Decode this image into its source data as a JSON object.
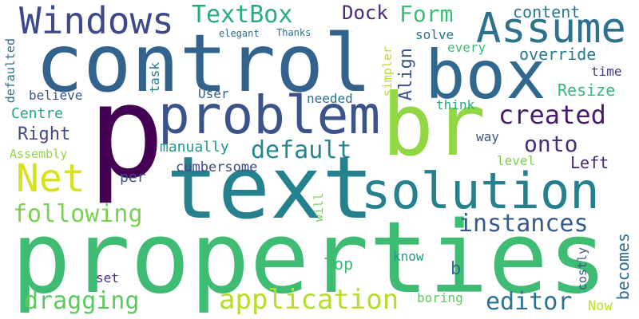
{
  "word_cloud": {
    "background": "#ffffff",
    "palette": {
      "deep_purple": "#440154",
      "indigo": "#3b528b",
      "slate": "#31688e",
      "teal": "#21918c",
      "green": "#35b779",
      "lime": "#90d743",
      "yellow": "#bddf26"
    },
    "words": [
      {
        "text": "properties",
        "color": "#3fbc73"
      },
      {
        "text": "text",
        "color": "#26818e"
      },
      {
        "text": "control",
        "color": "#33638d"
      },
      {
        "text": "p",
        "color": "#440154"
      },
      {
        "text": "br",
        "color": "#90d743"
      },
      {
        "text": "box",
        "color": "#31688e"
      },
      {
        "text": "problem",
        "color": "#3b528b"
      },
      {
        "text": "solution",
        "color": "#26818e"
      },
      {
        "text": "Windows",
        "color": "#3e4989"
      },
      {
        "text": "Assume",
        "color": "#2c728e"
      },
      {
        "text": "Net",
        "color": "#d8e219"
      },
      {
        "text": "application",
        "color": "#b5de2b"
      },
      {
        "text": "instances",
        "color": "#38598c"
      },
      {
        "text": "TextBox",
        "color": "#25ac82"
      },
      {
        "text": "Form",
        "color": "#3dbc74"
      },
      {
        "text": "created",
        "color": "#481b6d"
      },
      {
        "text": "default",
        "color": "#24868e"
      },
      {
        "text": "onto",
        "color": "#472d7b"
      },
      {
        "text": "following",
        "color": "#7ad151"
      },
      {
        "text": "dragging",
        "color": "#5ec962"
      },
      {
        "text": "editor",
        "color": "#2c728e"
      },
      {
        "text": "Dock",
        "color": "#482878"
      },
      {
        "text": "content",
        "color": "#2a788e"
      },
      {
        "text": "override",
        "color": "#2a788e"
      },
      {
        "text": "Resize",
        "color": "#35b779"
      },
      {
        "text": "Align",
        "color": "#3b528b"
      },
      {
        "text": "Right",
        "color": "#3e4989"
      },
      {
        "text": "Left",
        "color": "#482475"
      },
      {
        "text": "Centre",
        "color": "#22a884"
      },
      {
        "text": "Top",
        "color": "#3dbc74"
      },
      {
        "text": "becomes",
        "color": "#31688e"
      },
      {
        "text": "manually",
        "color": "#1f988b"
      },
      {
        "text": "cumbersome",
        "color": "#3e4989"
      },
      {
        "text": "per",
        "color": "#3b528b"
      },
      {
        "text": "needed",
        "color": "#2c728e"
      },
      {
        "text": "think",
        "color": "#25ac82"
      },
      {
        "text": "way",
        "color": "#3b528b"
      },
      {
        "text": "level",
        "color": "#7ad151"
      },
      {
        "text": "time",
        "color": "#443983"
      },
      {
        "text": "every",
        "color": "#3dbc74"
      },
      {
        "text": "solve",
        "color": "#2c728e"
      },
      {
        "text": "simpler",
        "color": "#b5de2b"
      },
      {
        "text": "task",
        "color": "#2a788e"
      },
      {
        "text": "User",
        "color": "#33638d"
      },
      {
        "text": "believe",
        "color": "#3b528b"
      },
      {
        "text": "defaulted",
        "color": "#2c728e"
      },
      {
        "text": "Assembly",
        "color": "#90d743"
      },
      {
        "text": "elegant",
        "color": "#2c728e"
      },
      {
        "text": "Thanks",
        "color": "#2c728e"
      },
      {
        "text": "set",
        "color": "#472d7b"
      },
      {
        "text": "know",
        "color": "#1f988b"
      },
      {
        "text": "b",
        "color": "#31688e"
      },
      {
        "text": "boring",
        "color": "#5ec962"
      },
      {
        "text": "costly",
        "color": "#3b528b"
      },
      {
        "text": "Now",
        "color": "#bddf26"
      },
      {
        "text": "will",
        "color": "#7ad151"
      }
    ]
  }
}
